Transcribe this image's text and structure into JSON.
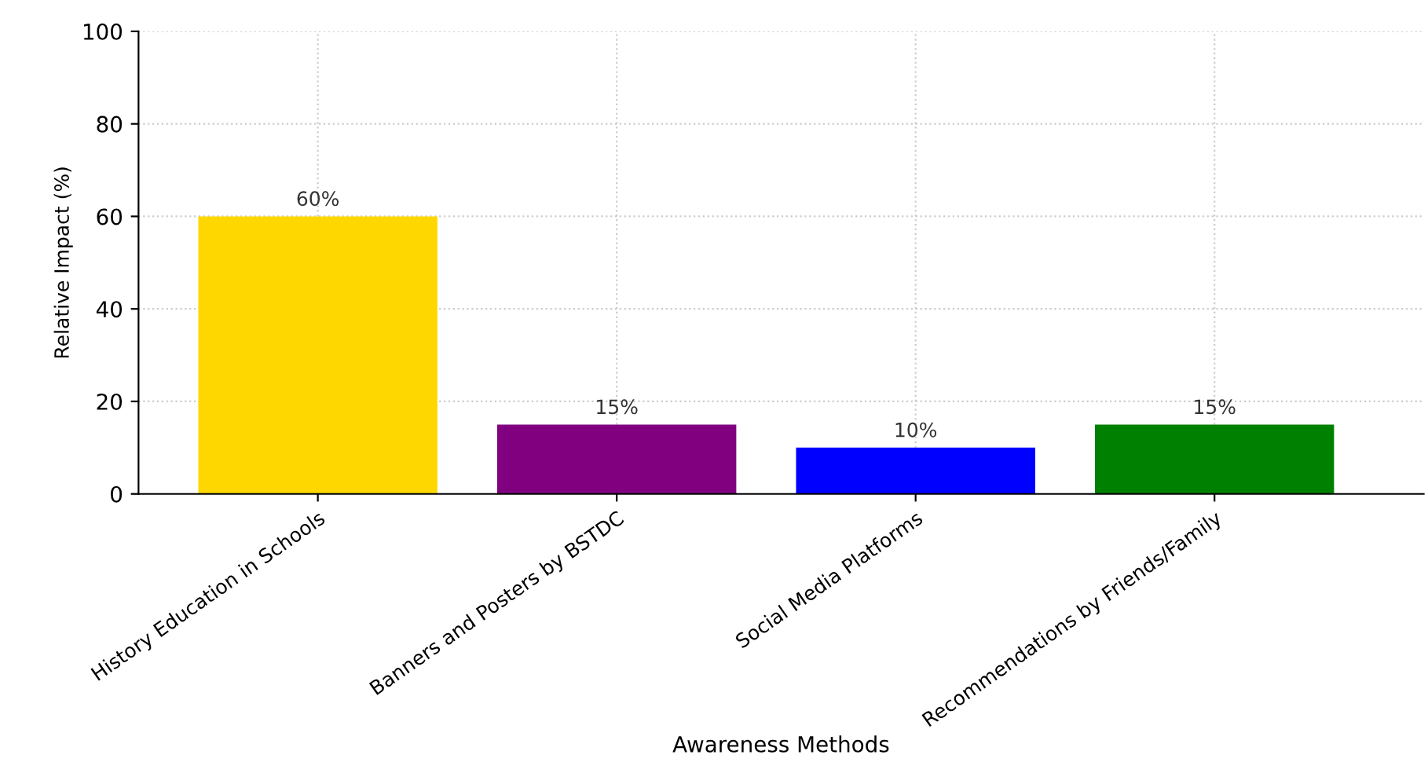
{
  "chart_data": {
    "type": "bar",
    "xlabel": "Awareness Methods",
    "ylabel": "Relative Impact (%)",
    "categories": [
      "History Education in Schools",
      "Banners and Posters by BSTDC",
      "Social Media Platforms",
      "Recommendations by Friends/Family"
    ],
    "values": [
      60,
      15,
      10,
      15
    ],
    "colors": [
      "#ffd700",
      "#800080",
      "#0000ff",
      "#008000"
    ],
    "value_labels": [
      "60%",
      "15%",
      "10%",
      "15%"
    ],
    "ylim": [
      0,
      100
    ],
    "yticks": [
      0,
      20,
      40,
      60,
      80,
      100
    ],
    "grid": true
  }
}
